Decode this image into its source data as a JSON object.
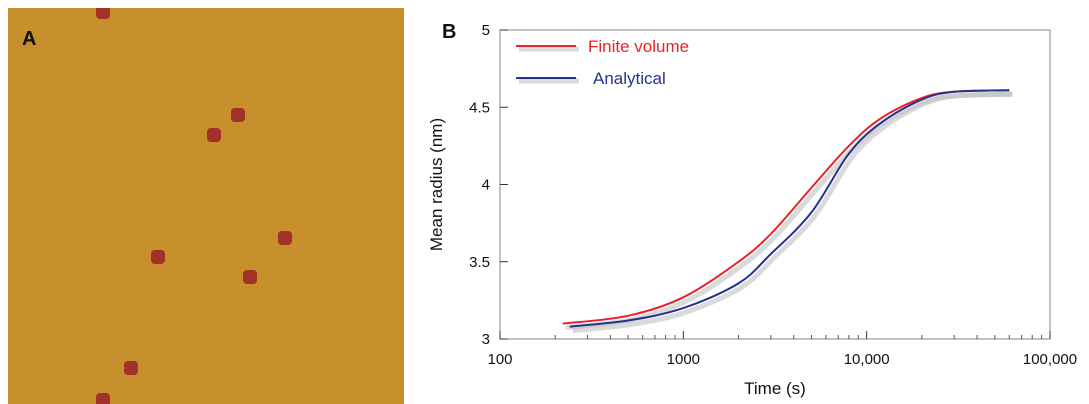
{
  "panel_a": {
    "letter": "A",
    "background_color": "#c8902c",
    "particle_color": "#a4302a",
    "particles": [
      {
        "fx": 0.24,
        "fy": 0.01
      },
      {
        "fx": 0.58,
        "fy": 0.27
      },
      {
        "fx": 0.52,
        "fy": 0.32
      },
      {
        "fx": 0.7,
        "fy": 0.58
      },
      {
        "fx": 0.38,
        "fy": 0.63
      },
      {
        "fx": 0.61,
        "fy": 0.68
      },
      {
        "fx": 0.31,
        "fy": 0.91
      },
      {
        "fx": 0.24,
        "fy": 0.99
      }
    ]
  },
  "chart_data": {
    "panel_letter": "B",
    "type": "line",
    "xlabel": "Time (s)",
    "ylabel": "Mean radius (nm)",
    "xscale": "log",
    "xlim": [
      100,
      100000
    ],
    "ylim": [
      3,
      5
    ],
    "xticks": [
      100,
      1000,
      10000,
      100000
    ],
    "xtick_labels": [
      "100",
      "1000",
      "10,000",
      "100,000"
    ],
    "yticks": [
      3,
      3.5,
      4,
      4.5,
      5
    ],
    "ytick_labels": [
      "3",
      "3.5",
      "4",
      "4.5",
      "5"
    ],
    "legend_position": "top-left",
    "series": [
      {
        "name": "Finite volume",
        "color": "#e8242a",
        "points": [
          [
            220,
            3.1
          ],
          [
            500,
            3.15
          ],
          [
            1000,
            3.27
          ],
          [
            2000,
            3.5
          ],
          [
            3000,
            3.68
          ],
          [
            5000,
            3.98
          ],
          [
            8000,
            4.25
          ],
          [
            12000,
            4.43
          ],
          [
            20000,
            4.56
          ],
          [
            30000,
            4.6
          ],
          [
            60000,
            4.61
          ]
        ]
      },
      {
        "name": "Analytical",
        "color": "#25318e",
        "points": [
          [
            240,
            3.08
          ],
          [
            500,
            3.12
          ],
          [
            1000,
            3.2
          ],
          [
            2000,
            3.36
          ],
          [
            3000,
            3.55
          ],
          [
            5000,
            3.82
          ],
          [
            8000,
            4.2
          ],
          [
            12000,
            4.4
          ],
          [
            20000,
            4.55
          ],
          [
            30000,
            4.6
          ],
          [
            60000,
            4.61
          ]
        ]
      }
    ]
  }
}
